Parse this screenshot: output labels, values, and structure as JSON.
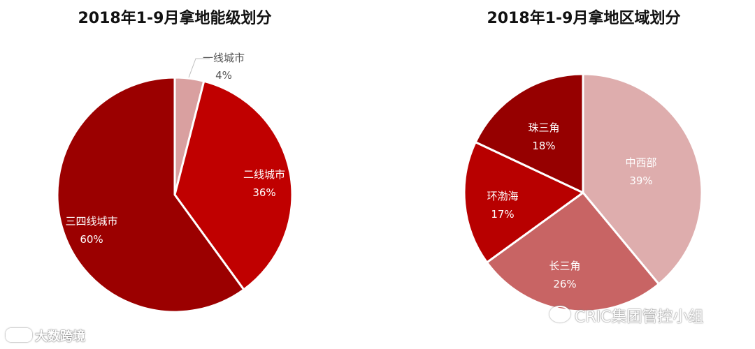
{
  "chart_data": [
    {
      "type": "pie",
      "title": "2018年1-9月拿地能级划分",
      "series": [
        {
          "label": "一线城市",
          "value": 4,
          "pct_label": "4%",
          "color": "#D9A0A0"
        },
        {
          "label": "二线城市",
          "value": 36,
          "pct_label": "36%",
          "color": "#C00000"
        },
        {
          "label": "三四线城市",
          "value": 60,
          "pct_label": "60%",
          "color": "#9B0000"
        }
      ]
    },
    {
      "type": "pie",
      "title": "2018年1-9月拿地区域划分",
      "series": [
        {
          "label": "中西部",
          "value": 39,
          "pct_label": "39%",
          "color": "#DEADAD"
        },
        {
          "label": "长三角",
          "value": 26,
          "pct_label": "26%",
          "color": "#C86464"
        },
        {
          "label": "环渤海",
          "value": 17,
          "pct_label": "17%",
          "color": "#B80000"
        },
        {
          "label": "珠三角",
          "value": 18,
          "pct_label": "18%",
          "color": "#960000"
        }
      ]
    }
  ],
  "watermarks": {
    "right": "CRIC集团管控小组",
    "left": "大数跨境"
  }
}
